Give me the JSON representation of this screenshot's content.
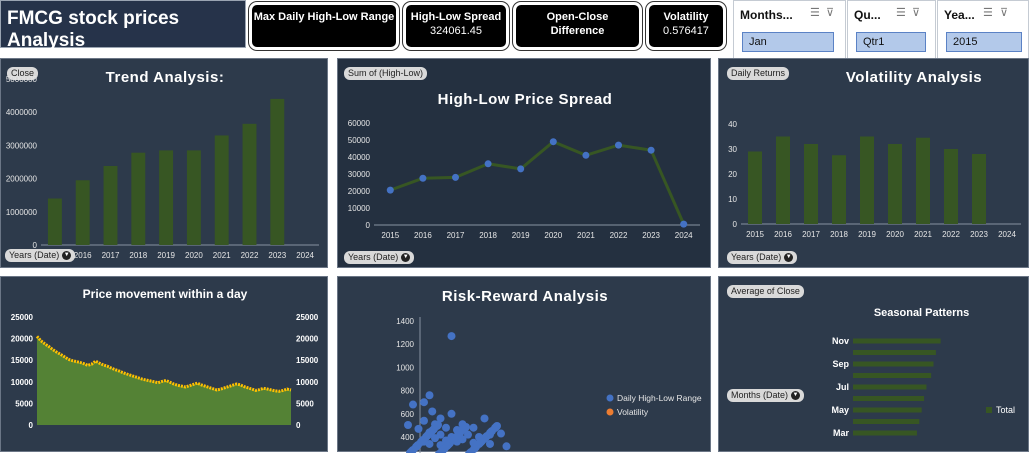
{
  "dashboard_title": "FMCG stock prices Analysis",
  "kpis": [
    {
      "label": "Max Daily High-Low Range",
      "value": ""
    },
    {
      "label": "High-Low Spread",
      "value": "324061.45"
    },
    {
      "label": "Open-Close Difference",
      "value": ""
    },
    {
      "label": "Volatility",
      "value": "0.576417"
    }
  ],
  "slicers": [
    {
      "header": "Months...",
      "selected": "Jan"
    },
    {
      "header": "Qu...",
      "selected": "Qtr1"
    },
    {
      "header": "Yea...",
      "selected": "2015"
    }
  ],
  "panels": {
    "trend": {
      "title": "Trend Analysis:",
      "field_pill": "Close",
      "axis_pill": "Years (Date)"
    },
    "spread": {
      "title": "High-Low Price Spread",
      "field_pill": "Sum of (High-Low)",
      "axis_pill": "Years (Date)"
    },
    "volatility": {
      "title": "Volatility Analysis",
      "field_pill": "Daily Returns",
      "axis_pill": "Years (Date)"
    },
    "intraday": {
      "title": "Price movement within a day"
    },
    "risk": {
      "title": "Risk-Reward Analysis"
    },
    "seasonal": {
      "field_pill": "Average of Close",
      "title": "Seasonal Patterns",
      "axis_pill": "Months (Date)"
    }
  },
  "chart_data": [
    {
      "id": "trend",
      "type": "bar",
      "categories": [
        "2015",
        "2016",
        "2017",
        "2018",
        "2019",
        "2020",
        "2021",
        "2022",
        "2023",
        "2024"
      ],
      "values": [
        1400000,
        1950000,
        2380000,
        2780000,
        2850000,
        2850000,
        3300000,
        3650000,
        4400000,
        0
      ],
      "ylim": [
        0,
        5000000
      ],
      "yticks": [
        "0",
        "1000000",
        "2000000",
        "3000000",
        "4000000",
        "5000000"
      ],
      "color": "#375623"
    },
    {
      "id": "spread",
      "type": "line",
      "categories": [
        "2015",
        "2016",
        "2017",
        "2018",
        "2019",
        "2020",
        "2021",
        "2022",
        "2023",
        "2024"
      ],
      "values": [
        20500,
        27500,
        28000,
        36000,
        33000,
        49000,
        41000,
        47000,
        44000,
        500
      ],
      "ylim": [
        0,
        60000
      ],
      "yticks": [
        "0",
        "10000",
        "20000",
        "30000",
        "40000",
        "50000",
        "60000"
      ],
      "color": "#375623",
      "marker_color": "#4472c4"
    },
    {
      "id": "volatility",
      "type": "bar",
      "categories": [
        "2015",
        "2016",
        "2017",
        "2018",
        "2019",
        "2020",
        "2021",
        "2022",
        "2023",
        "2024"
      ],
      "values": [
        29,
        35,
        32,
        27.5,
        35,
        32,
        34.5,
        30,
        28,
        0
      ],
      "ylim": [
        0,
        40
      ],
      "yticks": [
        "0",
        "10",
        "20",
        "30",
        "40"
      ],
      "color": "#375623"
    },
    {
      "id": "intraday",
      "type": "area",
      "ylim": [
        0,
        25000
      ],
      "yticks": [
        "0",
        "5000",
        "10000",
        "15000",
        "20000",
        "25000"
      ],
      "values": [
        20500,
        19500,
        18800,
        18200,
        17500,
        16900,
        16400,
        15800,
        15200,
        14900,
        14700,
        14500,
        14200,
        13800,
        14100,
        14800,
        14300,
        13900,
        13600,
        13200,
        12800,
        12500,
        12100,
        11800,
        11500,
        11200,
        10900,
        10600,
        10400,
        10200,
        10000,
        9800,
        10100,
        10300,
        9900,
        9500,
        9200,
        9000,
        8800,
        9100,
        9400,
        9700,
        9300,
        9000,
        8700,
        8400,
        8100,
        8300,
        8600,
        8900,
        9200,
        9500,
        9300,
        8900,
        8600,
        8300,
        8000,
        8200,
        8500,
        8300,
        8100,
        7900,
        7800,
        8000,
        8300,
        8100
      ]
    },
    {
      "id": "risk",
      "type": "scatter",
      "ylim": [
        0,
        1400
      ],
      "yticks": [
        "400",
        "600",
        "800",
        "1000",
        "1200",
        "1400"
      ],
      "legend": [
        "Daily High-Low Range",
        "Volatility"
      ],
      "series_colors": [
        "#4472c4",
        "#ed7d31"
      ],
      "points": [
        [
          0.05,
          1270
        ],
        [
          0.01,
          760
        ],
        [
          -0.02,
          680
        ],
        [
          0.0,
          700
        ],
        [
          0.015,
          620
        ],
        [
          0.03,
          560
        ],
        [
          0.05,
          600
        ],
        [
          0.07,
          510
        ],
        [
          0.09,
          480
        ],
        [
          0.11,
          560
        ],
        [
          0.12,
          420
        ],
        [
          0.14,
          430
        ],
        [
          0.0,
          540
        ],
        [
          0.02,
          510
        ],
        [
          0.04,
          480
        ],
        [
          0.06,
          460
        ],
        [
          0.08,
          420
        ],
        [
          0.1,
          400
        ],
        [
          -0.01,
          470
        ],
        [
          0.01,
          440
        ],
        [
          0.03,
          420
        ],
        [
          0.05,
          400
        ],
        [
          0.07,
          380
        ],
        [
          0.02,
          390
        ],
        [
          0.04,
          370
        ],
        [
          0.06,
          360
        ],
        [
          0.09,
          350
        ],
        [
          0.12,
          340
        ],
        [
          0.15,
          320
        ],
        [
          0.0,
          360
        ],
        [
          0.01,
          340
        ],
        [
          0.03,
          330
        ]
      ]
    },
    {
      "id": "seasonal",
      "type": "bar",
      "orientation": "horizontal",
      "categories": [
        "Nov",
        "",
        "Sep",
        "",
        "Jul",
        "",
        "May",
        "",
        "Mar"
      ],
      "values": [
        8700,
        8500,
        8400,
        8300,
        8100,
        8000,
        7900,
        7800,
        7700
      ],
      "legend": [
        "Total"
      ],
      "color": "#375623"
    }
  ]
}
